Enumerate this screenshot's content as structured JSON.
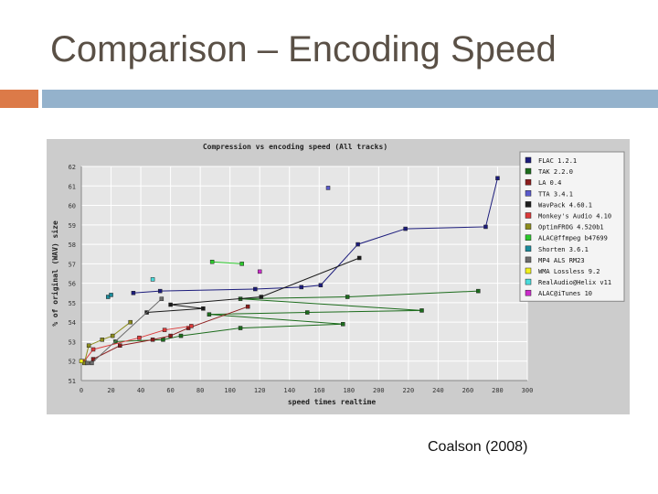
{
  "slide": {
    "title": "Comparison – Encoding Speed",
    "citation": "Coalson (2008)"
  },
  "colors": {
    "accent_orange": "#dc7a48",
    "accent_blue": "#94b2cc",
    "plot_bg": "#e6e6e6",
    "frame_bg": "#cccccc"
  },
  "chart_data": {
    "type": "scatter",
    "title": "Compression vs encoding speed (All tracks)",
    "xlabel": "speed times realtime",
    "ylabel": "% of original (WAV) size",
    "xlim": [
      0,
      300
    ],
    "ylim": [
      51,
      62
    ],
    "xticks": [
      0,
      20,
      40,
      60,
      80,
      100,
      120,
      140,
      160,
      180,
      200,
      220,
      240,
      260,
      280,
      300
    ],
    "yticks": [
      51,
      52,
      53,
      54,
      55,
      56,
      57,
      58,
      59,
      60,
      61,
      62
    ],
    "series": [
      {
        "name": "FLAC 1.2.1",
        "color": "#1c1c7c",
        "points": [
          [
            35,
            55.5
          ],
          [
            53,
            55.6
          ],
          [
            117,
            55.7
          ],
          [
            148,
            55.8
          ],
          [
            161,
            55.9
          ],
          [
            186,
            58.0
          ],
          [
            218,
            58.8
          ],
          [
            272,
            58.9
          ],
          [
            280,
            61.4
          ]
        ]
      },
      {
        "name": "TAK 2.2.0",
        "color": "#1c6c1c",
        "points": [
          [
            23,
            53.0
          ],
          [
            55,
            53.1
          ],
          [
            67,
            53.3
          ],
          [
            107,
            53.7
          ],
          [
            176,
            53.9
          ],
          [
            86,
            54.4
          ],
          [
            152,
            54.5
          ],
          [
            229,
            54.6
          ],
          [
            107,
            55.2
          ],
          [
            179,
            55.3
          ],
          [
            267,
            55.6
          ]
        ]
      },
      {
        "name": "LA 0.4",
        "color": "#8c1c1c",
        "points": [
          [
            8,
            52.1
          ],
          [
            26,
            52.8
          ],
          [
            48,
            53.1
          ],
          [
            60,
            53.3
          ],
          [
            72,
            53.7
          ],
          [
            112,
            54.8
          ]
        ]
      },
      {
        "name": "TTA 3.4.1",
        "color": "#5a5acc",
        "points": [
          [
            166,
            60.9
          ]
        ]
      },
      {
        "name": "WavPack 4.60.1",
        "color": "#1c1c1c",
        "points": [
          [
            44,
            54.5
          ],
          [
            82,
            54.7
          ],
          [
            60,
            54.9
          ],
          [
            121,
            55.3
          ],
          [
            187,
            57.3
          ]
        ]
      },
      {
        "name": "Monkey's Audio 4.10",
        "color": "#dc3a3a",
        "points": [
          [
            2,
            52.0
          ],
          [
            8,
            52.6
          ],
          [
            39,
            53.2
          ],
          [
            56,
            53.6
          ],
          [
            74,
            53.8
          ]
        ]
      },
      {
        "name": "OptimFROG 4.520b1",
        "color": "#8c8c1c",
        "points": [
          [
            2,
            51.9
          ],
          [
            5,
            52.8
          ],
          [
            14,
            53.1
          ],
          [
            21,
            53.3
          ],
          [
            33,
            54.0
          ]
        ]
      },
      {
        "name": "ALAC@ffmpeg b47699",
        "color": "#2cc82c",
        "points": [
          [
            88,
            57.1
          ],
          [
            108,
            57.0
          ]
        ]
      },
      {
        "name": "Shorten 3.6.1",
        "color": "#1c8c9c",
        "points": [
          [
            18,
            55.3
          ],
          [
            20,
            55.4
          ]
        ]
      },
      {
        "name": "MP4 ALS RM23",
        "color": "#6c6c6c",
        "points": [
          [
            4,
            51.9
          ],
          [
            7,
            51.9
          ],
          [
            54,
            55.2
          ]
        ]
      },
      {
        "name": "WMA Lossless 9.2",
        "color": "#f0f01c",
        "points": [
          [
            0,
            52.0
          ]
        ]
      },
      {
        "name": "RealAudio@Helix v11",
        "color": "#4adcdc",
        "points": [
          [
            48,
            56.2
          ]
        ]
      },
      {
        "name": "ALAC@iTunes 10",
        "color": "#cc2ccc",
        "points": [
          [
            120,
            56.6
          ]
        ]
      }
    ]
  }
}
